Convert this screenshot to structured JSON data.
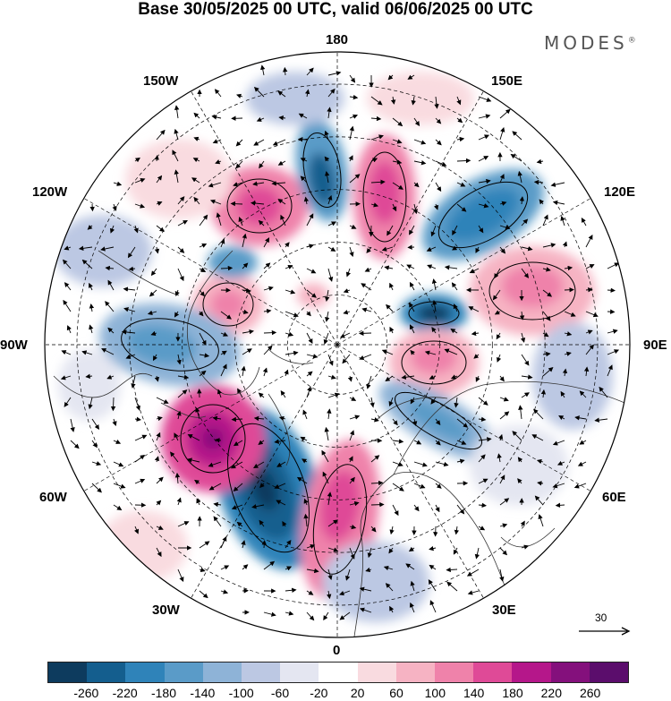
{
  "title": "Base 30/05/2025 00 UTC, valid 06/06/2025 00 UTC",
  "brand": "MODES",
  "brand_mark": "®",
  "longitude_labels": {
    "lon_180": "180",
    "lon_150E": "150E",
    "lon_120E": "120E",
    "lon_90E": "90E",
    "lon_60E": "60E",
    "lon_30E": "30E",
    "lon_0": "0",
    "lon_30W": "30W",
    "lon_60W": "60W",
    "lon_90W": "90W",
    "lon_120W": "120W",
    "lon_150W": "150W"
  },
  "reference_vector": "30",
  "colorbar": {
    "ticks": [
      "-260",
      "-220",
      "-180",
      "-140",
      "-100",
      "-60",
      "-20",
      "20",
      "60",
      "100",
      "140",
      "180",
      "220",
      "260"
    ],
    "colors": [
      "#0d3b5e",
      "#145e8e",
      "#2f83b9",
      "#5a9bc8",
      "#8eb3d7",
      "#bcc8e3",
      "#e4e6f1",
      "#ffffff",
      "#f9dbe0",
      "#f6b3c3",
      "#ef82aa",
      "#df4a97",
      "#b5178a",
      "#84107c",
      "#5b0d6c"
    ]
  },
  "colors": {
    "ocean": "#ffffff",
    "land_outline": "#333333",
    "gridline": "#000000"
  }
}
